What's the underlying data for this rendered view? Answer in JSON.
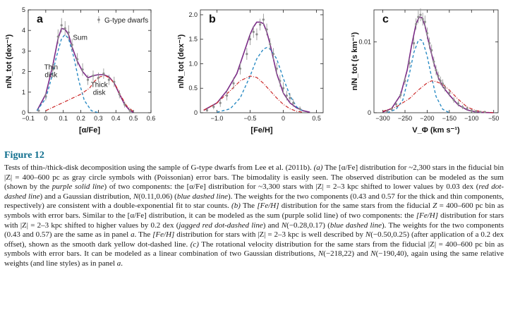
{
  "figure": {
    "title": "Figure 12",
    "caption": [
      {
        "t": "Tests of thin-/thick-disk decomposition using the sample of G-type dwarfs from Lee et al. (2011b). "
      },
      {
        "t": "(a)",
        "i": true
      },
      {
        "t": " The [α/Fe] distribution for ~2,300 stars in the fiducial bin |Z| = 400–600 pc as gray circle symbols with (Poissonian) error bars. The bimodality is easily seen. The observed distribution can be modeled as the sum (shown by the "
      },
      {
        "t": "purple solid line",
        "i": true
      },
      {
        "t": ") of two components: the [α/Fe] distribution for ~3,300 stars with |Z| = 2–3 kpc shifted to lower values by 0.03 dex ("
      },
      {
        "t": "red dot-dashed line",
        "i": true
      },
      {
        "t": ") and a Gaussian distribution, "
      },
      {
        "t": "N",
        "i": true
      },
      {
        "t": "(0.11,0.06) ("
      },
      {
        "t": "blue dashed line",
        "i": true
      },
      {
        "t": "). The weights for the two components (0.43 and 0.57 for the thick and thin components, respectively) are consistent with a double-exponential fit to star counts. "
      },
      {
        "t": "(b)",
        "i": true
      },
      {
        "t": " The "
      },
      {
        "t": "[Fe/H]",
        "i": true
      },
      {
        "t": " distribution for the same stars from the fiducial "
      },
      {
        "t": "Z",
        "i": true
      },
      {
        "t": " = 400–600 pc bin as symbols with error bars. Similar to the [α/Fe] distribution, it can be modeled as the sum (purple solid line) of two components: the "
      },
      {
        "t": "[Fe/H]",
        "i": true
      },
      {
        "t": " distribution for stars with |Z| = 2–3 kpc shifted to higher values by 0.2 dex ("
      },
      {
        "t": "jagged red dot-dashed line",
        "i": true
      },
      {
        "t": ") and "
      },
      {
        "t": "N",
        "i": true
      },
      {
        "t": "(−0.28,0.17) ("
      },
      {
        "t": "blue dashed line",
        "i": true
      },
      {
        "t": "). The weights for the two components (0.43 and 0.57) are the same as in panel "
      },
      {
        "t": "a",
        "i": true
      },
      {
        "t": ". The "
      },
      {
        "t": "[Fe/H]",
        "i": true
      },
      {
        "t": " distribution for stars with |Z| = 2–3 kpc is well described by "
      },
      {
        "t": "N",
        "i": true
      },
      {
        "t": "(−0.50,0.25) (after application of a 0.2 dex offset), shown as the smooth dark yellow dot-dashed line. "
      },
      {
        "t": "(c)",
        "i": true
      },
      {
        "t": " The rotational velocity distribution for the same stars from the fiducial |Z| = 400–600 pc bin as symbols with error bars. It can be modeled as a linear combination of two Gaussian distributions, "
      },
      {
        "t": "N",
        "i": true
      },
      {
        "t": "(−218,22) and "
      },
      {
        "t": "N",
        "i": true
      },
      {
        "t": "(−190,40), again using the same relative weights (and line styles) as in panel "
      },
      {
        "t": "a",
        "i": true
      },
      {
        "t": "."
      }
    ]
  },
  "colors": {
    "sum": "#7a2a86",
    "thin": "#2a8bc4",
    "thick": "#cc2a2a",
    "observed": "#8c8c8c",
    "title": "#0c6c8c"
  },
  "chart_data": [
    {
      "type": "line",
      "panel": "a",
      "xlabel": "[α/Fe]",
      "ylabel": "n/N_tot (dex⁻¹)",
      "xlim": [
        -0.1,
        0.6
      ],
      "ylim": [
        0,
        5
      ],
      "xticks": [
        "−0.1",
        "0",
        "0.1",
        "0.2",
        "0.3",
        "0.4",
        "0.5",
        "0.6"
      ],
      "xtick_values": [
        -0.1,
        0,
        0.1,
        0.2,
        0.3,
        0.4,
        0.5,
        0.6
      ],
      "yticks": [
        "0",
        "1",
        "2",
        "3",
        "4",
        "5"
      ],
      "ytick_values": [
        0,
        1,
        2,
        3,
        4,
        5
      ],
      "legend": "G-type dwarfs",
      "annotations": {
        "sum": "Sum",
        "thin": "Thin\ndisk",
        "thick": "Thick\ndisk"
      },
      "series": [
        {
          "name": "Sum",
          "style": "solid",
          "x": [
            -0.05,
            0,
            0.04,
            0.07,
            0.09,
            0.11,
            0.13,
            0.15,
            0.18,
            0.21,
            0.24,
            0.27,
            0.3,
            0.33,
            0.36,
            0.39,
            0.42,
            0.45,
            0.48,
            0.5
          ],
          "y": [
            0.1,
            0.9,
            2.3,
            3.6,
            4.1,
            4.05,
            3.8,
            3.2,
            2.5,
            2.0,
            1.7,
            1.8,
            1.85,
            1.85,
            1.75,
            1.45,
            0.9,
            0.4,
            0.1,
            0.02
          ]
        },
        {
          "name": "Thin disk",
          "style": "dashed",
          "x": [
            -0.05,
            0,
            0.03,
            0.06,
            0.09,
            0.11,
            0.13,
            0.16,
            0.19,
            0.22,
            0.26,
            0.3
          ],
          "y": [
            0.1,
            0.7,
            1.6,
            2.7,
            3.6,
            3.8,
            3.6,
            2.7,
            1.5,
            0.6,
            0.1,
            0.0
          ]
        },
        {
          "name": "Thick disk",
          "style": "dotdash",
          "x": [
            0,
            0.05,
            0.1,
            0.15,
            0.2,
            0.25,
            0.28,
            0.31,
            0.34,
            0.37,
            0.4,
            0.43,
            0.46,
            0.5
          ],
          "y": [
            0.1,
            0.3,
            0.5,
            0.7,
            0.9,
            1.2,
            1.55,
            1.75,
            1.8,
            1.65,
            1.3,
            0.8,
            0.35,
            0.05
          ]
        },
        {
          "name": "Observed",
          "style": "points",
          "x": [
            -0.04,
            0,
            0.04,
            0.07,
            0.09,
            0.11,
            0.13,
            0.15,
            0.18,
            0.21,
            0.24,
            0.27,
            0.3,
            0.33,
            0.36,
            0.39,
            0.42,
            0.45,
            0.48
          ],
          "y": [
            0.1,
            0.8,
            2.1,
            3.7,
            4.25,
            4.1,
            3.9,
            3.3,
            2.6,
            2.1,
            1.6,
            1.8,
            1.7,
            1.9,
            1.6,
            1.5,
            0.9,
            0.4,
            0.1
          ],
          "err": [
            0.05,
            0.2,
            0.3,
            0.35,
            0.35,
            0.35,
            0.35,
            0.3,
            0.3,
            0.3,
            0.25,
            0.25,
            0.25,
            0.25,
            0.25,
            0.25,
            0.2,
            0.15,
            0.1
          ]
        }
      ]
    },
    {
      "type": "line",
      "panel": "b",
      "xlabel": "[Fe/H]",
      "ylabel": "n/N_tot (dex⁻¹)",
      "xlim": [
        -1.25,
        0.6
      ],
      "ylim": [
        0,
        2.1
      ],
      "xticks": [
        "−1.0",
        "−0.5",
        "0",
        "0.5"
      ],
      "xtick_values": [
        -1.0,
        -0.5,
        0,
        0.5
      ],
      "yticks": [
        "0",
        "0.5",
        "1.0",
        "1.5",
        "2.0"
      ],
      "ytick_values": [
        0,
        0.5,
        1.0,
        1.5,
        2.0
      ],
      "series": [
        {
          "name": "Sum",
          "style": "solid",
          "x": [
            -1.2,
            -1.0,
            -0.85,
            -0.7,
            -0.6,
            -0.5,
            -0.45,
            -0.4,
            -0.35,
            -0.3,
            -0.25,
            -0.2,
            -0.15,
            -0.1,
            -0.05,
            0,
            0.1,
            0.2,
            0.3,
            0.4
          ],
          "y": [
            0.05,
            0.2,
            0.45,
            0.8,
            1.2,
            1.6,
            1.75,
            1.85,
            1.85,
            1.82,
            1.65,
            1.4,
            1.1,
            0.8,
            0.6,
            0.4,
            0.2,
            0.1,
            0.04,
            0.01
          ]
        },
        {
          "name": "Thin disk",
          "style": "dashed",
          "x": [
            -1.0,
            -0.8,
            -0.65,
            -0.5,
            -0.4,
            -0.3,
            -0.25,
            -0.2,
            -0.1,
            0,
            0.1,
            0.2,
            0.3
          ],
          "y": [
            0.01,
            0.08,
            0.3,
            0.75,
            1.1,
            1.3,
            1.33,
            1.3,
            1.1,
            0.7,
            0.35,
            0.12,
            0.03
          ]
        },
        {
          "name": "Thick disk",
          "style": "dotdash",
          "x": [
            -1.2,
            -1.0,
            -0.8,
            -0.65,
            -0.5,
            -0.4,
            -0.3,
            -0.2,
            -0.1,
            0,
            0.1,
            0.2,
            0.3
          ],
          "y": [
            0.05,
            0.2,
            0.45,
            0.65,
            0.75,
            0.72,
            0.6,
            0.45,
            0.3,
            0.17,
            0.08,
            0.03,
            0.01
          ]
        },
        {
          "name": "Observed",
          "style": "points",
          "x": [
            -1.15,
            -1.05,
            -0.95,
            -0.85,
            -0.75,
            -0.65,
            -0.55,
            -0.5,
            -0.45,
            -0.4,
            -0.35,
            -0.3,
            -0.25,
            -0.2,
            -0.15,
            -0.1,
            -0.05,
            0,
            0.05,
            0.1,
            0.15,
            0.25
          ],
          "y": [
            0.05,
            0.12,
            0.2,
            0.35,
            0.6,
            0.9,
            1.2,
            1.5,
            1.65,
            1.6,
            1.8,
            1.9,
            1.7,
            1.4,
            1.2,
            0.9,
            0.65,
            0.5,
            0.35,
            0.3,
            0.2,
            0.08
          ],
          "err": [
            0.03,
            0.05,
            0.08,
            0.1,
            0.12,
            0.12,
            0.12,
            0.12,
            0.12,
            0.12,
            0.12,
            0.12,
            0.12,
            0.12,
            0.12,
            0.12,
            0.12,
            0.12,
            0.1,
            0.1,
            0.08,
            0.05
          ]
        }
      ]
    },
    {
      "type": "line",
      "panel": "c",
      "xlabel": "V_Φ (km s⁻¹)",
      "ylabel": "n/N_tot (s km⁻¹)",
      "xlim": [
        -320,
        -40
      ],
      "ylim": [
        0,
        0.0145
      ],
      "xticks": [
        "−300",
        "−250",
        "−200",
        "−150",
        "−100",
        "−50"
      ],
      "xtick_values": [
        -300,
        -250,
        -200,
        -150,
        -100,
        -50
      ],
      "yticks": [
        "0",
        "0.01"
      ],
      "ytick_values": [
        0,
        0.01
      ],
      "series": [
        {
          "name": "Sum",
          "style": "solid",
          "x": [
            -300,
            -280,
            -260,
            -245,
            -235,
            -225,
            -218,
            -212,
            -205,
            -195,
            -185,
            -175,
            -165,
            -150,
            -130,
            -110,
            -90,
            -70,
            -50
          ],
          "y": [
            0.0001,
            0.0006,
            0.0025,
            0.006,
            0.0095,
            0.0125,
            0.0135,
            0.0134,
            0.0123,
            0.0095,
            0.007,
            0.005,
            0.0037,
            0.0025,
            0.0011,
            0.0004,
            0.0001,
            3e-05,
            0.0
          ]
        },
        {
          "name": "Thin disk",
          "style": "dashed",
          "x": [
            -290,
            -270,
            -255,
            -240,
            -230,
            -220,
            -215,
            -210,
            -200,
            -190,
            -180,
            -165,
            -150
          ],
          "y": [
            0.0,
            0.0005,
            0.0018,
            0.0055,
            0.0085,
            0.0102,
            0.0103,
            0.0101,
            0.008,
            0.005,
            0.0023,
            0.0005,
            0.0
          ]
        },
        {
          "name": "Thick disk",
          "style": "dotdash",
          "x": [
            -300,
            -270,
            -240,
            -220,
            -200,
            -190,
            -180,
            -165,
            -150,
            -130,
            -110,
            -90,
            -70,
            -50
          ],
          "y": [
            0.0002,
            0.0008,
            0.002,
            0.0032,
            0.0042,
            0.0045,
            0.0044,
            0.004,
            0.0032,
            0.0019,
            0.0008,
            0.0003,
            0.0001,
            0.0
          ]
        },
        {
          "name": "Observed",
          "style": "points",
          "x": [
            -290,
            -280,
            -270,
            -260,
            -250,
            -240,
            -230,
            -225,
            -220,
            -215,
            -210,
            -205,
            -200,
            -195,
            -190,
            -185,
            -180,
            -175,
            -170,
            -165,
            -160,
            -150,
            -140,
            -130,
            -120,
            -110,
            -100,
            -90,
            -80,
            -70
          ],
          "y": [
            0.0002,
            0.0005,
            0.0012,
            0.0025,
            0.0045,
            0.007,
            0.0098,
            0.0125,
            0.0135,
            0.0138,
            0.0132,
            0.0128,
            0.0112,
            0.0098,
            0.0088,
            0.0072,
            0.006,
            0.0052,
            0.0045,
            0.0041,
            0.0035,
            0.0028,
            0.0018,
            0.0013,
            0.0008,
            0.0006,
            0.0003,
            0.0002,
            0.0001,
            0.0001
          ],
          "err": [
            0.0002,
            0.0003,
            0.0004,
            0.0005,
            0.0006,
            0.0007,
            0.0008,
            0.0008,
            0.0009,
            0.0009,
            0.0009,
            0.0009,
            0.0008,
            0.0008,
            0.0008,
            0.0007,
            0.0007,
            0.0006,
            0.0006,
            0.0006,
            0.0005,
            0.0005,
            0.0004,
            0.0004,
            0.0003,
            0.0003,
            0.0002,
            0.0002,
            0.0001,
            0.0001
          ]
        }
      ]
    }
  ]
}
